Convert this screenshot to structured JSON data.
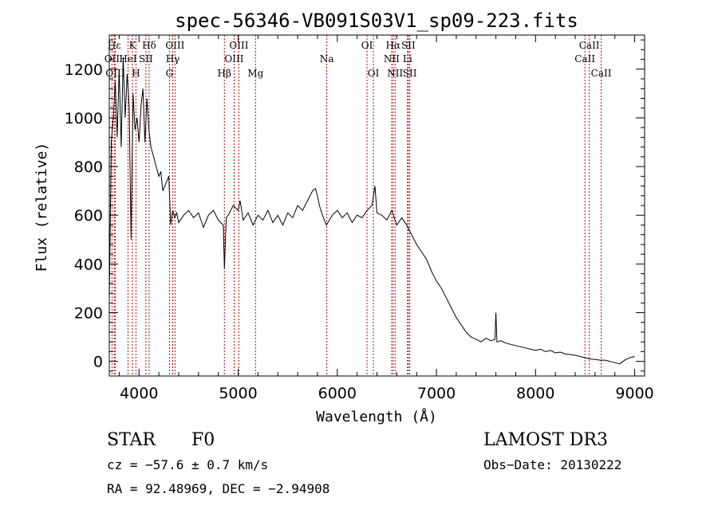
{
  "chart_data": {
    "type": "line",
    "title": "spec-56346-VB091S03V1_sp09-223.fits",
    "xlabel": "Wavelength (Å)",
    "ylabel": "Flux (relative)",
    "xlim": [
      3700,
      9100
    ],
    "ylim": [
      -60,
      1340
    ],
    "xticks": [
      4000,
      5000,
      6000,
      7000,
      8000,
      9000
    ],
    "yticks": [
      0,
      200,
      400,
      600,
      800,
      1000,
      1200
    ],
    "series": [
      {
        "name": "spectrum",
        "x": [
          3700,
          3720,
          3740,
          3760,
          3780,
          3800,
          3820,
          3840,
          3860,
          3880,
          3900,
          3920,
          3940,
          3960,
          3980,
          4000,
          4020,
          4040,
          4060,
          4080,
          4100,
          4120,
          4140,
          4160,
          4180,
          4200,
          4220,
          4240,
          4260,
          4280,
          4300,
          4320,
          4340,
          4360,
          4380,
          4400,
          4450,
          4500,
          4550,
          4600,
          4650,
          4700,
          4750,
          4800,
          4850,
          4861,
          4880,
          4900,
          4950,
          5000,
          5020,
          5050,
          5100,
          5150,
          5200,
          5250,
          5300,
          5350,
          5400,
          5450,
          5500,
          5550,
          5600,
          5650,
          5700,
          5750,
          5780,
          5800,
          5820,
          5850,
          5890,
          5920,
          5950,
          6000,
          6050,
          6100,
          6150,
          6200,
          6250,
          6300,
          6350,
          6380,
          6400,
          6450,
          6500,
          6550,
          6600,
          6650,
          6700,
          6750,
          6800,
          6850,
          6900,
          6950,
          7000,
          7050,
          7100,
          7150,
          7200,
          7250,
          7300,
          7350,
          7400,
          7450,
          7500,
          7550,
          7590,
          7600,
          7610,
          7650,
          7700,
          7750,
          7800,
          7850,
          7900,
          7950,
          8000,
          8050,
          8100,
          8150,
          8200,
          8250,
          8300,
          8350,
          8400,
          8450,
          8500,
          8550,
          8600,
          8650,
          8700,
          8750,
          8800,
          8850,
          8900,
          8950,
          9000
        ],
        "y": [
          250,
          900,
          1000,
          1150,
          920,
          1200,
          880,
          1250,
          1000,
          1180,
          1050,
          500,
          1100,
          950,
          1000,
          900,
          1050,
          1120,
          900,
          1080,
          950,
          880,
          850,
          820,
          790,
          760,
          780,
          700,
          720,
          740,
          760,
          560,
          620,
          590,
          610,
          570,
          600,
          620,
          590,
          610,
          550,
          600,
          620,
          580,
          560,
          380,
          590,
          600,
          640,
          620,
          660,
          580,
          610,
          560,
          600,
          580,
          620,
          570,
          600,
          560,
          610,
          590,
          640,
          620,
          660,
          700,
          710,
          680,
          640,
          600,
          560,
          580,
          600,
          620,
          590,
          610,
          570,
          600,
          590,
          620,
          640,
          720,
          610,
          600,
          580,
          620,
          560,
          590,
          560,
          520,
          480,
          450,
          420,
          370,
          330,
          300,
          260,
          220,
          180,
          150,
          120,
          100,
          90,
          80,
          95,
          85,
          90,
          200,
          80,
          85,
          75,
          70,
          65,
          60,
          55,
          50,
          45,
          50,
          40,
          45,
          35,
          38,
          30,
          28,
          25,
          20,
          15,
          10,
          8,
          5,
          5,
          0,
          -5,
          -10,
          5,
          15,
          20
        ]
      }
    ],
    "line_markers": [
      {
        "name": "Hε",
        "wave": 3750,
        "label": "Hε",
        "row": 1
      },
      {
        "name": "OII",
        "wave": 3727,
        "label": "OII",
        "row": 2
      },
      {
        "name": "OIII",
        "wave": 3760,
        "label": "OIII",
        "row": 3
      },
      {
        "name": "K",
        "wave": 3934,
        "label": "K",
        "row": 1
      },
      {
        "name": "He I",
        "wave": 3889,
        "label": "HeI",
        "row": 2
      },
      {
        "name": "H",
        "wave": 3969,
        "label": "H",
        "row": 3
      },
      {
        "name": "Hδ",
        "wave": 4102,
        "label": "Hδ",
        "row": 1
      },
      {
        "name": "SII",
        "wave": 4069,
        "label": "SII",
        "row": 2
      },
      {
        "name": "OIII",
        "wave": 4363,
        "label": "OIII",
        "row": 1
      },
      {
        "name": "Hγ",
        "wave": 4340,
        "label": "Hγ",
        "row": 2
      },
      {
        "name": "G",
        "wave": 4307,
        "label": "G",
        "row": 3
      },
      {
        "name": "Hβ",
        "wave": 4861,
        "label": "Hβ",
        "row": 3
      },
      {
        "name": "OIII",
        "wave": 5007,
        "label": "OIII",
        "row": 1
      },
      {
        "name": "OIII",
        "wave": 4959,
        "label": "OIII",
        "row": 2
      },
      {
        "name": "Mg",
        "wave": 5175,
        "label": "Mg",
        "row": 3
      },
      {
        "name": "Na",
        "wave": 5894,
        "label": "Na",
        "row": 2
      },
      {
        "name": "OI",
        "wave": 6300,
        "label": "OI",
        "row": 1
      },
      {
        "name": "OI",
        "wave": 6364,
        "label": "OI",
        "row": 3
      },
      {
        "name": "Hα",
        "wave": 6563,
        "label": "Hα",
        "row": 1
      },
      {
        "name": "NII",
        "wave": 6548,
        "label": "NII",
        "row": 2
      },
      {
        "name": "NII",
        "wave": 6583,
        "label": "NII",
        "row": 3
      },
      {
        "name": "SII",
        "wave": 6717,
        "label": "SII",
        "row": 1
      },
      {
        "name": "Li",
        "wave": 6708,
        "label": "Li",
        "row": 2
      },
      {
        "name": "SII",
        "wave": 6731,
        "label": "SII",
        "row": 3
      },
      {
        "name": "CaII",
        "wave": 8542,
        "label": "CaII",
        "row": 1
      },
      {
        "name": "CaII",
        "wave": 8498,
        "label": "CaII",
        "row": 2
      },
      {
        "name": "CaII",
        "wave": 8662,
        "label": "CaII",
        "row": 3
      }
    ]
  },
  "info": {
    "class_label": "STAR",
    "subclass": "F0",
    "survey": "LAMOST DR3",
    "cz": "cz = −57.6 ± 0.7 km/s",
    "obs_date": "Obs−Date: 20130222",
    "coords": "RA =  92.48969, DEC =  −2.94908"
  }
}
